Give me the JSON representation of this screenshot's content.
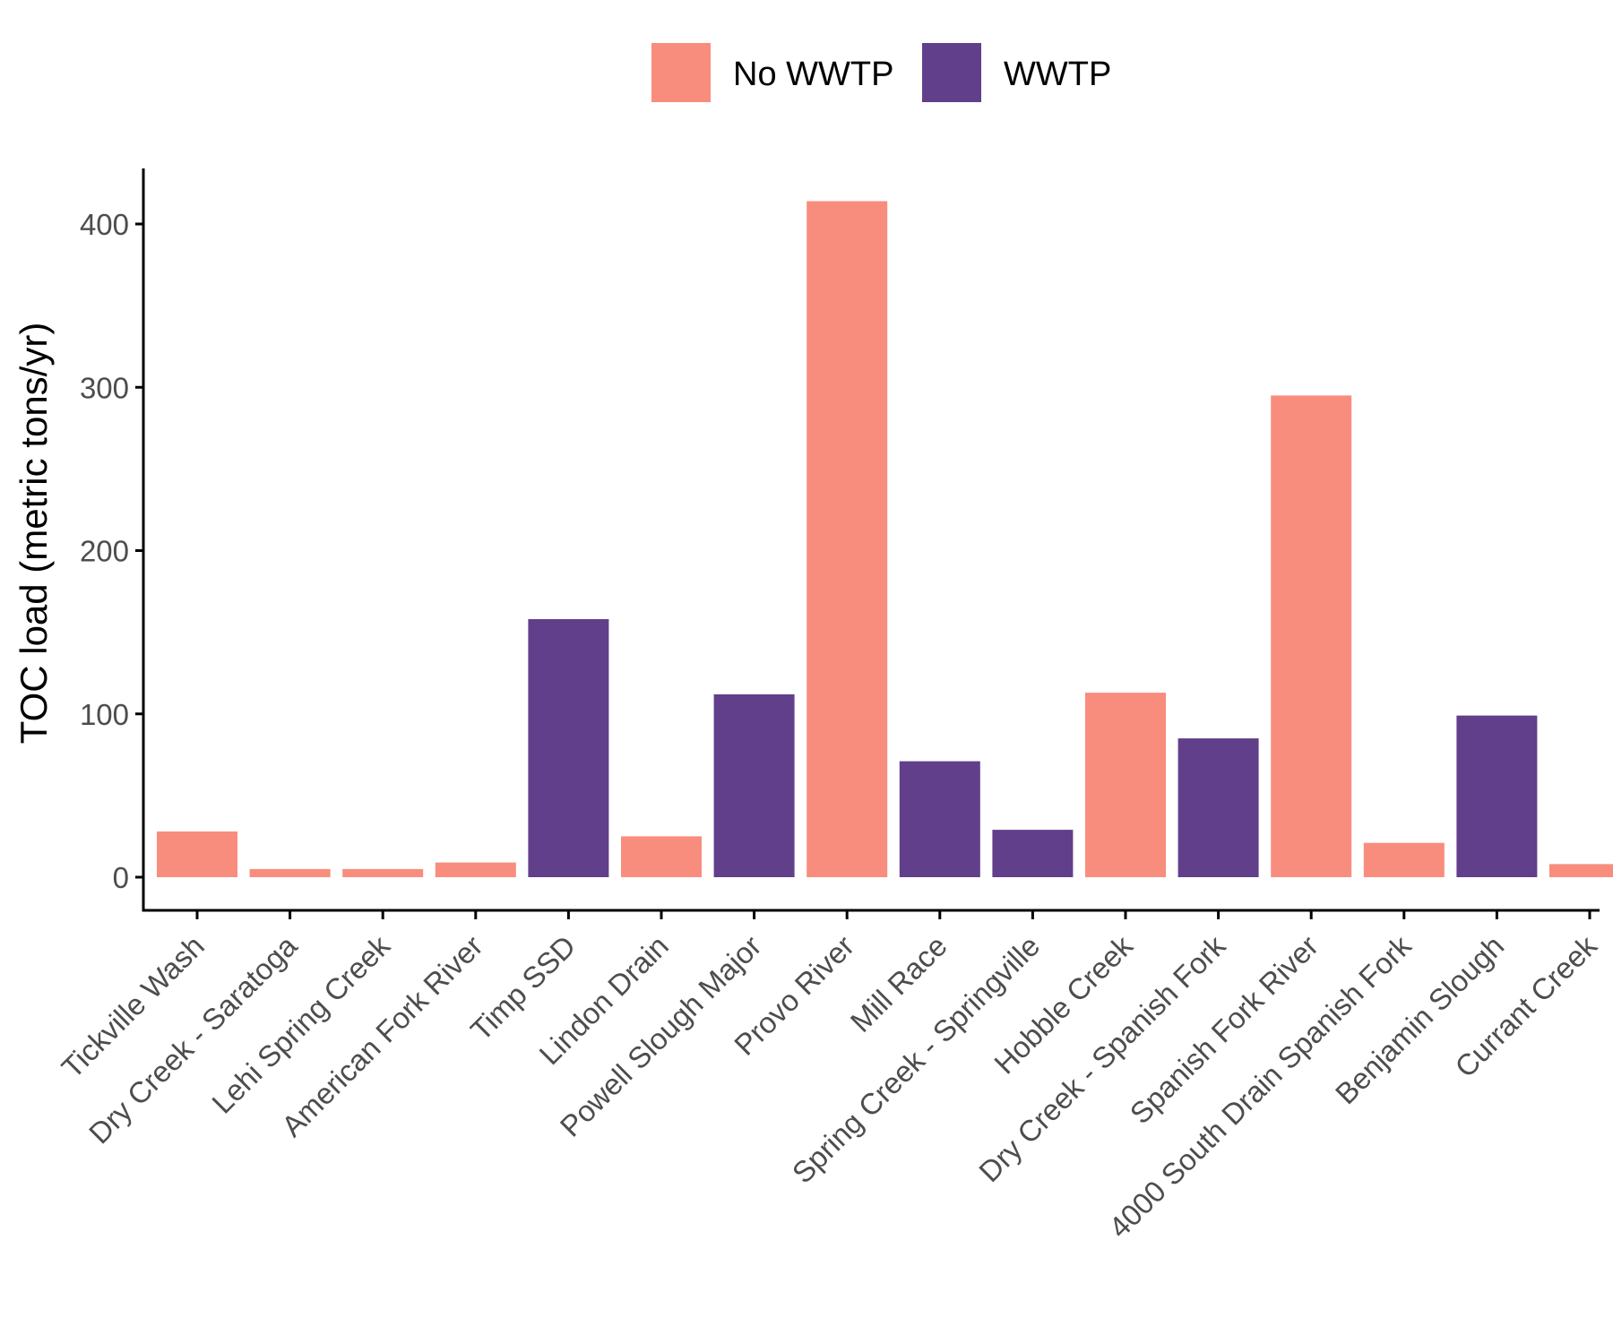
{
  "chart_data": {
    "type": "bar",
    "title": "",
    "xlabel": "",
    "ylabel": "TOC load (metric tons/yr)",
    "ylim": [
      0,
      435
    ],
    "yticks": [
      0,
      100,
      200,
      300,
      400
    ],
    "grid": false,
    "legend_position": "top",
    "legend": [
      {
        "name": "No WWTP",
        "color": "#F88D7D"
      },
      {
        "name": "WWTP",
        "color": "#623F8B"
      }
    ],
    "categories": [
      "Tickville Wash",
      "Dry Creek - Saratoga",
      "Lehi Spring Creek",
      "American Fork River",
      "Timp SSD",
      "Lindon Drain",
      "Powell Slough Major",
      "Provo River",
      "Mill Race",
      "Spring Creek - Springville",
      "Hobble Creek",
      "Dry Creek - Spanish Fork",
      "Spanish Fork River",
      "4000 South Drain Spanish Fork",
      "Benjamin Slough",
      "Currant Creek"
    ],
    "values": [
      28,
      5,
      5,
      9,
      158,
      25,
      112,
      414,
      71,
      29,
      113,
      85,
      295,
      21,
      99,
      8
    ],
    "groups": [
      "No WWTP",
      "No WWTP",
      "No WWTP",
      "No WWTP",
      "WWTP",
      "No WWTP",
      "WWTP",
      "No WWTP",
      "WWTP",
      "WWTP",
      "No WWTP",
      "WWTP",
      "No WWTP",
      "No WWTP",
      "WWTP",
      "No WWTP"
    ]
  }
}
